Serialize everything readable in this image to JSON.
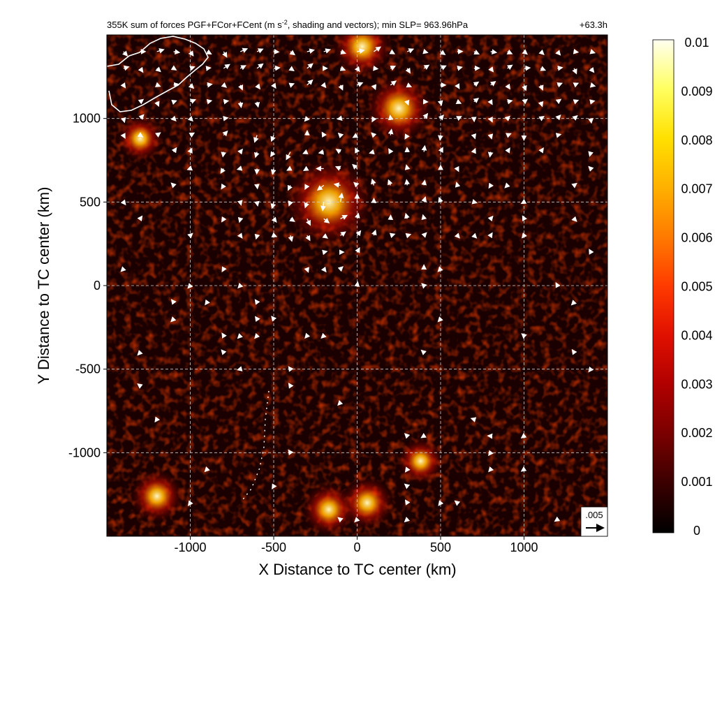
{
  "chart_data": {
    "type": "heatmap",
    "title": "355K sum of forces PGF+FCor+FCent (m s",
    "title_sup": "-2",
    "title_rest": ", shading and vectors); min SLP= 963.96hPa",
    "time_label": "+63.3h",
    "xlabel": "X Distance to TC center (km)",
    "ylabel": "Y Distance to TC center (km)",
    "xlim": [
      -1500,
      1500
    ],
    "ylim": [
      -1500,
      1500
    ],
    "x_ticks": [
      -1000,
      -500,
      0,
      500,
      1000
    ],
    "y_ticks": [
      -1000,
      -500,
      0,
      500,
      1000
    ],
    "grid": true,
    "colorbar": {
      "min": 0,
      "max": 0.01,
      "ticks": [
        "0",
        "0.001",
        "0.002",
        "0.003",
        "0.004",
        "0.005",
        "0.006",
        "0.007",
        "0.008",
        "0.009",
        "0.01"
      ],
      "colors": [
        "#000000",
        "#3a0000",
        "#7a0000",
        "#b00000",
        "#e01000",
        "#ff3a00",
        "#ff7a00",
        "#ffb000",
        "#ffe000",
        "#ffff60",
        "#fffff0"
      ]
    },
    "reference_vector": {
      "label": ".005",
      "magnitude": 0.005
    },
    "hotspots": [
      {
        "x": -170,
        "y": 500,
        "value": 0.009
      },
      {
        "x": 250,
        "y": 1060,
        "value": 0.006
      },
      {
        "x": 30,
        "y": 1430,
        "value": 0.005
      },
      {
        "x": -1200,
        "y": -1260,
        "value": 0.004
      },
      {
        "x": -170,
        "y": -1340,
        "value": 0.004
      },
      {
        "x": 60,
        "y": -1300,
        "value": 0.004
      },
      {
        "x": 380,
        "y": -1050,
        "value": 0.003
      },
      {
        "x": -1300,
        "y": 880,
        "value": 0.003
      }
    ],
    "vectors_sample": [
      {
        "x": 100,
        "y": 1380,
        "u": 0.003,
        "v": 0.004
      },
      {
        "x": -100,
        "y": 1300,
        "u": 0.004,
        "v": 0.001
      },
      {
        "x": 0,
        "y": 1200,
        "u": 0.004,
        "v": -0.001
      },
      {
        "x": 300,
        "y": 1000,
        "u": 0.0,
        "v": -0.003
      },
      {
        "x": -150,
        "y": 500,
        "u": -0.002,
        "v": -0.002
      },
      {
        "x": -100,
        "y": 600,
        "u": -0.002,
        "v": 0.002
      },
      {
        "x": 200,
        "y": 800,
        "u": 0.0,
        "v": -0.003
      },
      {
        "x": 900,
        "y": -1400,
        "u": 0.001,
        "v": -0.003
      }
    ]
  }
}
